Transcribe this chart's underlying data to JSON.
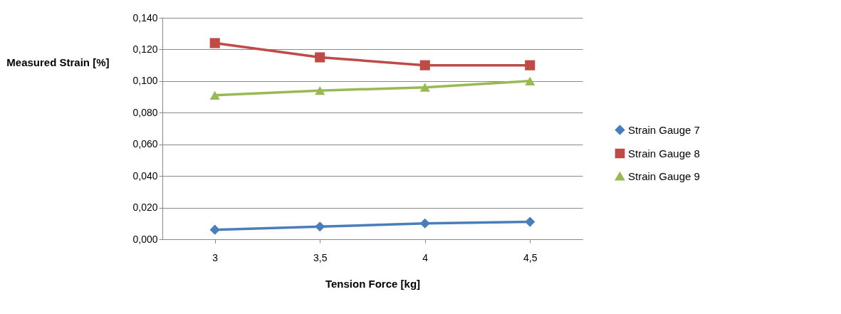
{
  "chart_data": {
    "type": "line",
    "xlabel": "Tension Force  [kg]",
    "ylabel": "Measured Strain [%]",
    "categories": [
      "3",
      "3,5",
      "4",
      "4,5"
    ],
    "series": [
      {
        "name": "Strain Gauge 7",
        "color": "#4a7ebb",
        "marker": "diamond",
        "values": [
          0.006,
          0.008,
          0.01,
          0.011
        ]
      },
      {
        "name": "Strain Gauge 8",
        "color": "#be4b48",
        "marker": "square",
        "values": [
          0.124,
          0.115,
          0.11,
          0.11
        ]
      },
      {
        "name": "Strain Gauge 9",
        "color": "#98b954",
        "marker": "triangle",
        "values": [
          0.091,
          0.094,
          0.096,
          0.1
        ]
      }
    ],
    "ylim": [
      0,
      0.14
    ],
    "yticks": [
      {
        "value": 0,
        "label": "0,000"
      },
      {
        "value": 0.02,
        "label": "0,020"
      },
      {
        "value": 0.04,
        "label": "0,040"
      },
      {
        "value": 0.06,
        "label": "0,060"
      },
      {
        "value": 0.08,
        "label": "0,080"
      },
      {
        "value": 0.1,
        "label": "0,100"
      },
      {
        "value": 0.12,
        "label": "0,120"
      },
      {
        "value": 0.14,
        "label": "0,140"
      }
    ],
    "grid": "y",
    "legend": "right",
    "line_style": "solid"
  }
}
